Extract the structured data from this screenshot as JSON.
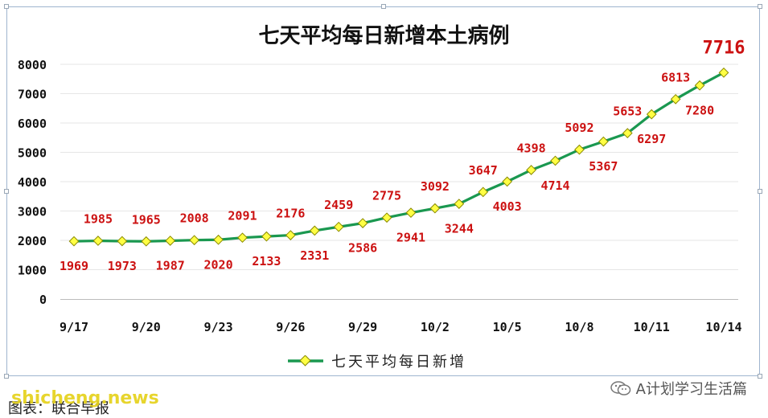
{
  "chart_data": {
    "type": "line",
    "title": "七天平均每日新增本土病例",
    "categories": [
      "9/17",
      "9/18",
      "9/19",
      "9/20",
      "9/21",
      "9/22",
      "9/23",
      "9/24",
      "9/25",
      "9/26",
      "9/27",
      "9/28",
      "9/29",
      "9/30",
      "10/1",
      "10/2",
      "10/3",
      "10/4",
      "10/5",
      "10/6",
      "10/7",
      "10/8",
      "10/9",
      "10/10",
      "10/11",
      "10/12",
      "10/13",
      "10/14"
    ],
    "x_tick_labels": [
      "9/17",
      "9/20",
      "9/23",
      "9/26",
      "9/29",
      "10/2",
      "10/5",
      "10/8",
      "10/11",
      "10/14"
    ],
    "series": [
      {
        "name": "七天平均每日新增",
        "values": [
          1969,
          1985,
          1973,
          1965,
          1987,
          2008,
          2020,
          2091,
          2133,
          2176,
          2331,
          2459,
          2586,
          2775,
          2941,
          3092,
          3244,
          3647,
          4003,
          4398,
          4714,
          5092,
          5367,
          5653,
          6297,
          6813,
          7280,
          7716
        ]
      }
    ],
    "label_positions": [
      "below",
      "above",
      "below",
      "above",
      "below",
      "above",
      "below",
      "above",
      "below",
      "above",
      "below",
      "above",
      "below",
      "above",
      "below",
      "above",
      "below",
      "above",
      "below",
      "above",
      "below",
      "above",
      "below",
      "above",
      "below",
      "above",
      "below",
      "above-big"
    ],
    "ylim": [
      0,
      8000
    ],
    "y_ticks": [
      "0",
      "1000",
      "2000",
      "3000",
      "4000",
      "5000",
      "6000",
      "7000",
      "8000"
    ],
    "grid": true,
    "legend_position": "bottom",
    "colors": {
      "line": "#1a9850",
      "marker": "#ffff44",
      "marker_edge": "#8a8a00",
      "labels": "#cc1111",
      "grid": "#e6e6e6"
    }
  },
  "watermark": {
    "text": "A计划学习生活篇"
  },
  "source_note": "图表：联合早报",
  "site_logo": "shicheng.news"
}
